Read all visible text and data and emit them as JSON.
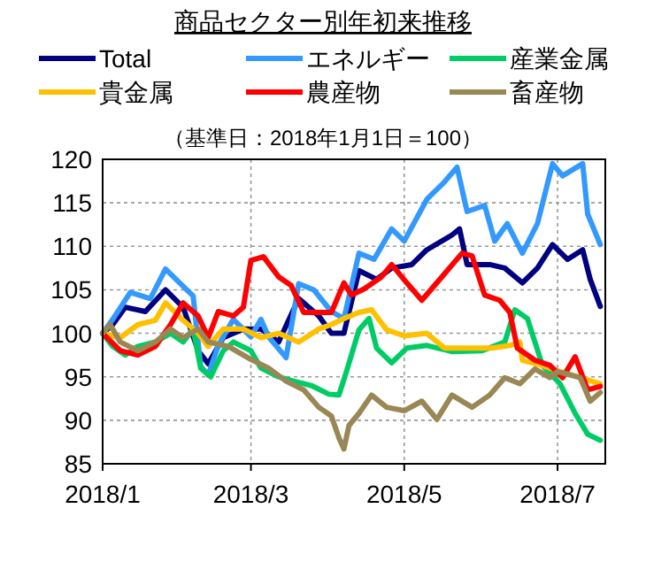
{
  "chart_data": {
    "type": "line",
    "title": "商品セクター別年初来推移",
    "subtitle": "（基準日：2018年1月1日＝100）",
    "xlim": [
      "2018-01-01",
      "2018-07-20"
    ],
    "xticks": [
      {
        "value": "2018-01-01",
        "label": "2018/1"
      },
      {
        "value": "2018-03-01",
        "label": "2018/3"
      },
      {
        "value": "2018-05-01",
        "label": "2018/5"
      },
      {
        "value": "2018-07-01",
        "label": "2018/7"
      }
    ],
    "ylim": [
      85,
      120
    ],
    "yticks": [
      85,
      90,
      95,
      100,
      105,
      110,
      115,
      120
    ],
    "grid": true,
    "legend": "top",
    "line_style": "solid",
    "marker": "none",
    "series": [
      {
        "name": "Total",
        "color": "#000080",
        "x": [
          "2018-01-01",
          "2018-01-05",
          "2018-01-10",
          "2018-01-18",
          "2018-01-26",
          "2018-02-02",
          "2018-02-08",
          "2018-02-12",
          "2018-02-18",
          "2018-02-26",
          "2018-03-05",
          "2018-03-12",
          "2018-03-20",
          "2018-03-28",
          "2018-04-02",
          "2018-04-07",
          "2018-04-13",
          "2018-04-20",
          "2018-04-26",
          "2018-05-04",
          "2018-05-10",
          "2018-05-20",
          "2018-05-23",
          "2018-05-26",
          "2018-06-04",
          "2018-06-10",
          "2018-06-17",
          "2018-06-23",
          "2018-06-29",
          "2018-07-05",
          "2018-07-11",
          "2018-07-14",
          "2018-07-18"
        ],
        "values": [
          100,
          101,
          103,
          102.5,
          105,
          103,
          98,
          96.5,
          99.5,
          100.5,
          100.5,
          99,
          104,
          102,
          100,
          100,
          107.2,
          106.2,
          107.5,
          107.9,
          109.6,
          111.3,
          112,
          107.9,
          107.9,
          107.5,
          105.8,
          107.5,
          110.2,
          108.5,
          109.6,
          106.2,
          103.1
        ]
      },
      {
        "name": "エネルギー",
        "color": "#3399ff",
        "x": [
          "2018-01-01",
          "2018-01-05",
          "2018-01-12",
          "2018-01-20",
          "2018-01-26",
          "2018-02-01",
          "2018-02-06",
          "2018-02-09",
          "2018-02-12",
          "2018-02-16",
          "2018-02-22",
          "2018-03-01",
          "2018-03-05",
          "2018-03-08",
          "2018-03-15",
          "2018-03-20",
          "2018-03-26",
          "2018-04-02",
          "2018-04-07",
          "2018-04-13",
          "2018-04-19",
          "2018-04-26",
          "2018-05-01",
          "2018-05-10",
          "2018-05-17",
          "2018-05-22",
          "2018-05-26",
          "2018-06-02",
          "2018-06-06",
          "2018-06-11",
          "2018-06-17",
          "2018-06-23",
          "2018-06-29",
          "2018-07-03",
          "2018-07-11",
          "2018-07-13",
          "2018-07-18"
        ],
        "values": [
          100,
          101.6,
          104.7,
          104,
          107.4,
          105.7,
          104.3,
          96.2,
          95.2,
          98.6,
          101.6,
          99.6,
          101.6,
          99.6,
          97.2,
          105.7,
          105,
          102.5,
          101.7,
          109.2,
          108.5,
          112,
          110.6,
          115.4,
          117.4,
          119.1,
          114,
          114.7,
          110.6,
          112.6,
          109.2,
          112.6,
          119.5,
          118.1,
          119.5,
          113.7,
          110.2
        ]
      },
      {
        "name": "産業金属",
        "color": "#00cc66",
        "x": [
          "2018-01-01",
          "2018-01-05",
          "2018-01-10",
          "2018-01-15",
          "2018-01-22",
          "2018-01-28",
          "2018-02-02",
          "2018-02-06",
          "2018-02-09",
          "2018-02-13",
          "2018-02-18",
          "2018-02-22",
          "2018-03-01",
          "2018-03-05",
          "2018-03-12",
          "2018-03-18",
          "2018-03-25",
          "2018-04-01",
          "2018-04-05",
          "2018-04-08",
          "2018-04-13",
          "2018-04-17",
          "2018-04-20",
          "2018-04-26",
          "2018-05-02",
          "2018-05-10",
          "2018-05-20",
          "2018-06-01",
          "2018-06-10",
          "2018-06-14",
          "2018-06-19",
          "2018-06-25",
          "2018-07-02",
          "2018-07-08",
          "2018-07-13",
          "2018-07-18"
        ],
        "values": [
          100,
          98.5,
          97.5,
          98.5,
          99,
          100,
          99,
          100.5,
          96,
          95,
          98,
          99,
          98,
          96,
          95,
          94.5,
          94,
          93,
          92.9,
          95.6,
          100.4,
          101.7,
          98.3,
          96.6,
          98.3,
          98.6,
          97.9,
          98,
          99,
          102.7,
          101.7,
          96.3,
          94.2,
          90.8,
          88.4,
          87.7
        ]
      },
      {
        "name": "貴金属",
        "color": "#ffc000",
        "x": [
          "2018-01-01",
          "2018-01-08",
          "2018-01-15",
          "2018-01-22",
          "2018-01-26",
          "2018-02-02",
          "2018-02-08",
          "2018-02-12",
          "2018-02-18",
          "2018-02-26",
          "2018-03-05",
          "2018-03-12",
          "2018-03-20",
          "2018-03-28",
          "2018-04-02",
          "2018-04-07",
          "2018-04-13",
          "2018-04-18",
          "2018-04-24",
          "2018-05-01",
          "2018-05-10",
          "2018-05-17",
          "2018-05-25",
          "2018-06-05",
          "2018-06-12",
          "2018-06-16",
          "2018-06-17",
          "2018-06-25",
          "2018-07-02",
          "2018-07-10",
          "2018-07-18"
        ],
        "values": [
          100,
          99.5,
          101,
          101.5,
          103.5,
          101.5,
          100,
          98.5,
          100.5,
          100.5,
          99.5,
          100,
          99,
          100.5,
          101,
          101.7,
          102.4,
          102.7,
          100.4,
          99.7,
          100,
          98.3,
          98.3,
          98.3,
          98.6,
          99,
          96.9,
          96.3,
          95.6,
          94.9,
          94.2
        ]
      },
      {
        "name": "農産物",
        "color": "#ff0000",
        "x": [
          "2018-01-01",
          "2018-01-08",
          "2018-01-15",
          "2018-01-22",
          "2018-01-28",
          "2018-02-02",
          "2018-02-08",
          "2018-02-12",
          "2018-02-16",
          "2018-02-22",
          "2018-02-26",
          "2018-03-01",
          "2018-03-06",
          "2018-03-12",
          "2018-03-17",
          "2018-03-22",
          "2018-03-28",
          "2018-04-02",
          "2018-04-07",
          "2018-04-10",
          "2018-04-15",
          "2018-04-22",
          "2018-04-26",
          "2018-05-02",
          "2018-05-08",
          "2018-05-16",
          "2018-05-24",
          "2018-05-28",
          "2018-06-02",
          "2018-06-08",
          "2018-06-12",
          "2018-06-15",
          "2018-06-22",
          "2018-06-28",
          "2018-07-03",
          "2018-07-08",
          "2018-07-13",
          "2018-07-18"
        ],
        "values": [
          100,
          98,
          97.5,
          98.5,
          101,
          103.5,
          102,
          99.5,
          102.5,
          102,
          103,
          108.4,
          108.8,
          106.5,
          105.5,
          102.4,
          102.4,
          102.4,
          105.8,
          104.4,
          105.1,
          106.5,
          107.9,
          105.8,
          103.8,
          106.5,
          109.2,
          108.9,
          104.4,
          103.8,
          102.4,
          98.3,
          96.9,
          96.3,
          94.9,
          97.3,
          93.5,
          93.9
        ]
      },
      {
        "name": "畜産物",
        "color": "#998855",
        "x": [
          "2018-01-01",
          "2018-01-04",
          "2018-01-08",
          "2018-01-15",
          "2018-01-22",
          "2018-01-28",
          "2018-02-02",
          "2018-02-08",
          "2018-02-12",
          "2018-02-20",
          "2018-03-01",
          "2018-03-08",
          "2018-03-15",
          "2018-03-22",
          "2018-03-28",
          "2018-04-02",
          "2018-04-05",
          "2018-04-07",
          "2018-04-09",
          "2018-04-13",
          "2018-04-18",
          "2018-04-24",
          "2018-05-01",
          "2018-05-08",
          "2018-05-14",
          "2018-05-20",
          "2018-05-28",
          "2018-06-04",
          "2018-06-10",
          "2018-06-16",
          "2018-06-22",
          "2018-06-28",
          "2018-07-01",
          "2018-07-05",
          "2018-07-10",
          "2018-07-14",
          "2018-07-18"
        ],
        "values": [
          100,
          101,
          99,
          98,
          99,
          100.5,
          99.5,
          100.5,
          99,
          98.5,
          97,
          96,
          94.5,
          93.5,
          91.5,
          90.5,
          88,
          86.7,
          89.4,
          90.8,
          92.9,
          91.5,
          91.1,
          92.2,
          90.1,
          92.9,
          91.5,
          92.9,
          94.9,
          94.2,
          95.9,
          94.9,
          95.6,
          95.3,
          94.9,
          92.2,
          93.2
        ]
      }
    ]
  }
}
